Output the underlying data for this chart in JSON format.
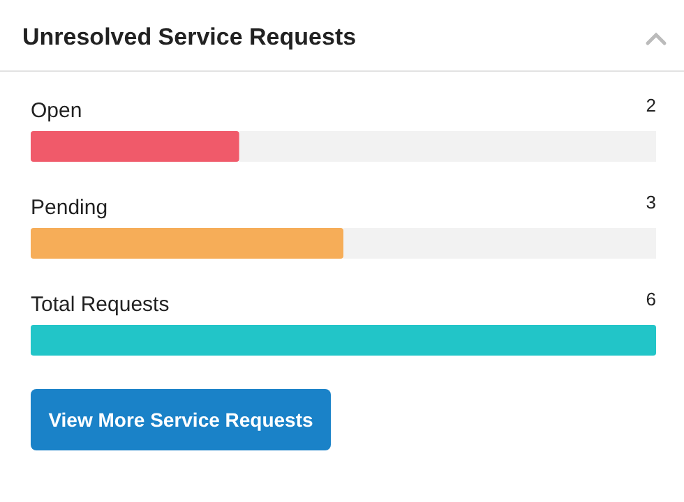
{
  "chart_data": {
    "type": "bar",
    "orientation": "horizontal",
    "title": "Unresolved Service Requests",
    "categories": [
      "Open",
      "Pending",
      "Total Requests"
    ],
    "values": [
      2,
      3,
      6
    ],
    "data_labels": true,
    "xlim": [
      0,
      6
    ],
    "colors": [
      "#f05a6a",
      "#f6ad58",
      "#22c5c8"
    ],
    "annotations": [
      "View More Service Requests"
    ]
  }
}
